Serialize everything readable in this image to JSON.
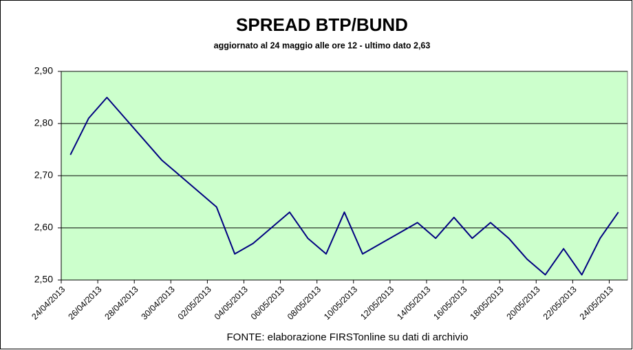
{
  "chart_data": {
    "type": "line",
    "title": "SPREAD  BTP/BUND",
    "subtitle": "aggiornato al 24 maggio alle ore 12 -  ultimo dato 2,63",
    "footer": "FONTE: elaborazione FIRSTonline su dati di archivio",
    "categories": [
      "24/04/2013",
      null,
      "26/04/2013",
      null,
      "28/04/2013",
      null,
      "30/04/2013",
      null,
      "02/05/2013",
      null,
      "04/05/2013",
      null,
      "06/05/2013",
      null,
      "08/05/2013",
      null,
      "10/05/2013",
      null,
      "12/05/2013",
      null,
      "14/05/2013",
      null,
      "16/05/2013",
      null,
      "18/05/2013",
      null,
      "20/05/2013",
      null,
      "22/05/2013",
      null,
      "24/05/2013"
    ],
    "values": [
      2.74,
      2.81,
      2.85,
      2.81,
      2.77,
      2.73,
      2.7,
      2.67,
      2.64,
      2.55,
      2.57,
      2.6,
      2.63,
      2.58,
      2.55,
      2.63,
      2.55,
      2.57,
      2.59,
      2.61,
      2.58,
      2.62,
      2.58,
      2.61,
      2.58,
      2.54,
      2.51,
      2.56,
      2.51,
      2.58,
      2.63
    ],
    "color": "#000080",
    "plot_background": "#ccffcc",
    "ylim": [
      2.5,
      2.9
    ],
    "yticks": [
      {
        "value": 2.5,
        "label": "2,50"
      },
      {
        "value": 2.6,
        "label": "2,60"
      },
      {
        "value": 2.7,
        "label": "2,70"
      },
      {
        "value": 2.8,
        "label": "2,80"
      },
      {
        "value": 2.9,
        "label": "2,90"
      }
    ],
    "grid": true
  }
}
